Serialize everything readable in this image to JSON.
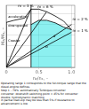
{
  "chart_data": {
    "type": "line",
    "xlabel": "n₂/n₁, –",
    "ylabel": "M₂/M₁, –",
    "xlim": [
      0,
      1.05
    ],
    "ylim": [
      0,
      1.45
    ],
    "xticks": [
      0,
      0.5,
      {
        "value": 1.0,
        "label": "1.0"
      }
    ],
    "yticks": [
      0,
      0.25,
      0.5,
      0.75,
      1.0,
      1.25
    ],
    "tick_labels": "x",
    "grid": true,
    "series": [
      {
        "type": "area",
        "color": "#00dddd",
        "x": [
          0.38,
          0.5,
          0.62,
          0.75,
          0.88,
          1.0,
          1.0,
          0.38
        ],
        "values": [
          1.0,
          1.1,
          1.1,
          1.04,
          0.94,
          0.88,
          0.0,
          0.0
        ]
      },
      {
        "color": "#000000",
        "x": [
          0.0,
          1.0
        ],
        "values": [
          0.0,
          1.0
        ]
      },
      {
        "color": "#000000",
        "x": [
          0.0,
          1.0
        ],
        "values": [
          0.0,
          0.82
        ]
      },
      {
        "color": "#000000",
        "x": [
          0.0,
          0.62
        ],
        "values": [
          0.0,
          1.3
        ]
      },
      {
        "color": "#000000",
        "x": [
          0.0,
          0.38
        ],
        "values": [
          0.0,
          1.36
        ]
      },
      {
        "color": "#000000",
        "x": [
          0.38,
          0.38
        ],
        "values": [
          0,
          1.45
        ]
      },
      {
        "color": "#000000",
        "x": [
          0.0,
          0.0,
          0.12,
          0.28,
          0.38,
          0.5,
          0.62,
          0.75,
          0.88,
          1.0
        ],
        "values": [
          0.0,
          1.05,
          1.1,
          1.15,
          1.36,
          1.36,
          1.3,
          1.2,
          1.08,
          0.88
        ]
      },
      {
        "color": "#000000",
        "x": [
          0.38,
          0.5,
          0.62,
          0.75,
          0.88,
          1.0
        ],
        "values": [
          1.0,
          1.1,
          1.1,
          1.04,
          0.94,
          0.88
        ]
      }
    ],
    "line_labels": [
      {
        "text": "a",
        "x": 0.74,
        "y": 0.72
      },
      {
        "text": "b",
        "x": 0.62,
        "y": 0.48
      }
    ],
    "region_labels": [
      {
        "text": "accelerating",
        "x": 0.03,
        "y": 1.18
      },
      {
        "text": "downgraded",
        "x": 0.03,
        "y": 0.98
      },
      {
        "text": "Coaster",
        "x": 0.03,
        "y": 0.62
      }
    ],
    "annotations": [
      {
        "text": "m = 3 %",
        "x": 0.3,
        "y": 1.385
      },
      {
        "text": "m = 6 %",
        "x": 0.6,
        "y": 1.365
      },
      {
        "text": "m = 2 %",
        "x": 1.015,
        "y": 1.07
      },
      {
        "text": "m = 1 %",
        "x": 1.015,
        "y": 0.8
      }
    ],
    "caption": [
      "Operating range 1 corresponds to the full-torque range that the diesel-engine defines.",
      "Step 1 – 79%: automatically Turboque-converter",
      "converter: downshift switching point = 45% for converter",
      "double: hydrodynamic matching",
      "in partial load-slip may be less than 5% if resistance to advancement is low."
    ]
  }
}
